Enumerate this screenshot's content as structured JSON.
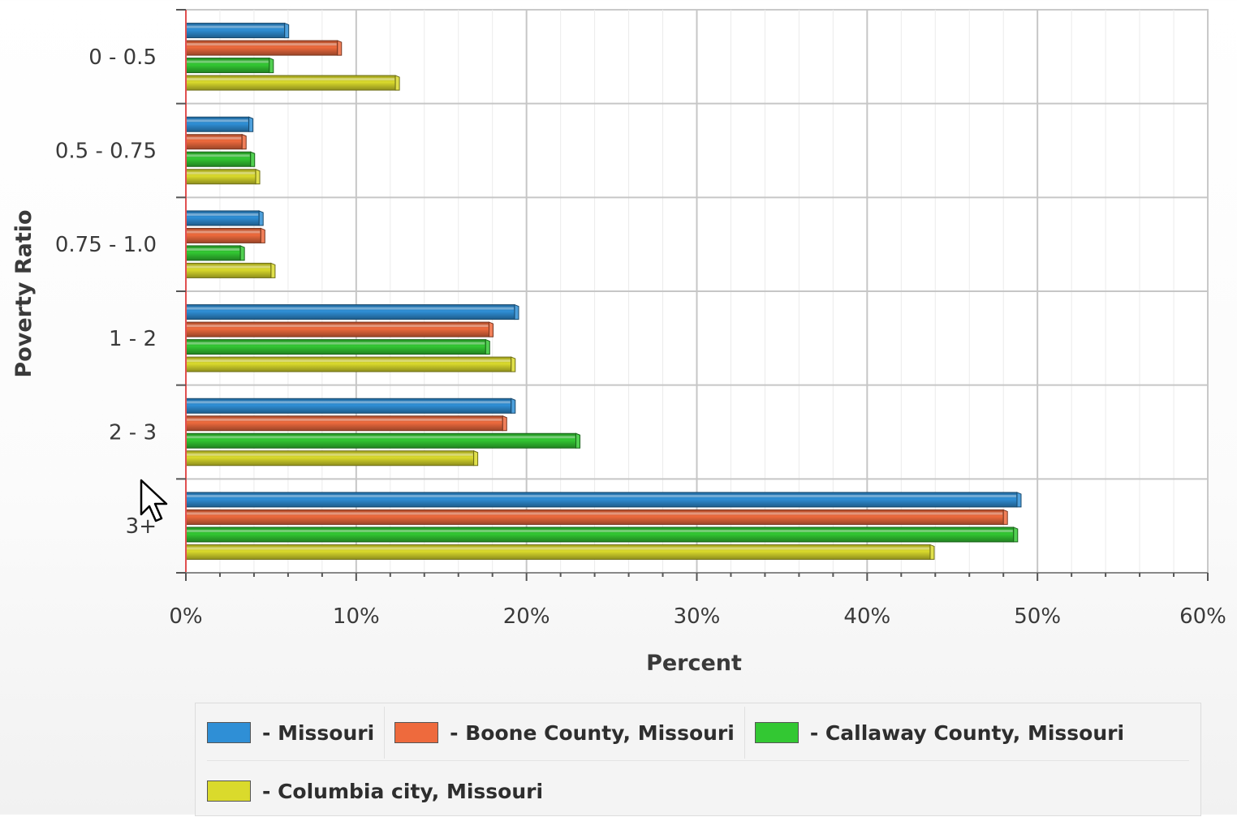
{
  "chart_data": {
    "type": "bar",
    "orientation": "horizontal",
    "categories": [
      "0 - 0.5",
      "0.5 - 0.75",
      "0.75 - 1.0",
      "1 - 2",
      "2 - 3",
      "3+"
    ],
    "series": [
      {
        "name": "- Missouri",
        "color": "#2f8fd6",
        "values": [
          5.8,
          3.7,
          4.3,
          19.3,
          19.1,
          48.8
        ]
      },
      {
        "name": "- Boone County, Missouri",
        "color": "#ee6a3d",
        "values": [
          8.9,
          3.3,
          4.4,
          17.8,
          18.6,
          48.0
        ]
      },
      {
        "name": "- Callaway County, Missouri",
        "color": "#33c833",
        "values": [
          4.9,
          3.8,
          3.2,
          17.6,
          22.9,
          48.6
        ]
      },
      {
        "name": "- Columbia city, Missouri",
        "color": "#dada2c",
        "values": [
          12.3,
          4.1,
          5.0,
          19.1,
          16.9,
          43.7
        ]
      }
    ],
    "xlabel": "Percent",
    "ylabel": "Poverty Ratio",
    "xlim": [
      0,
      60
    ],
    "xticks": [
      "0%",
      "10%",
      "20%",
      "30%",
      "40%",
      "50%",
      "60%"
    ],
    "grid": true,
    "legend_position": "bottom"
  }
}
